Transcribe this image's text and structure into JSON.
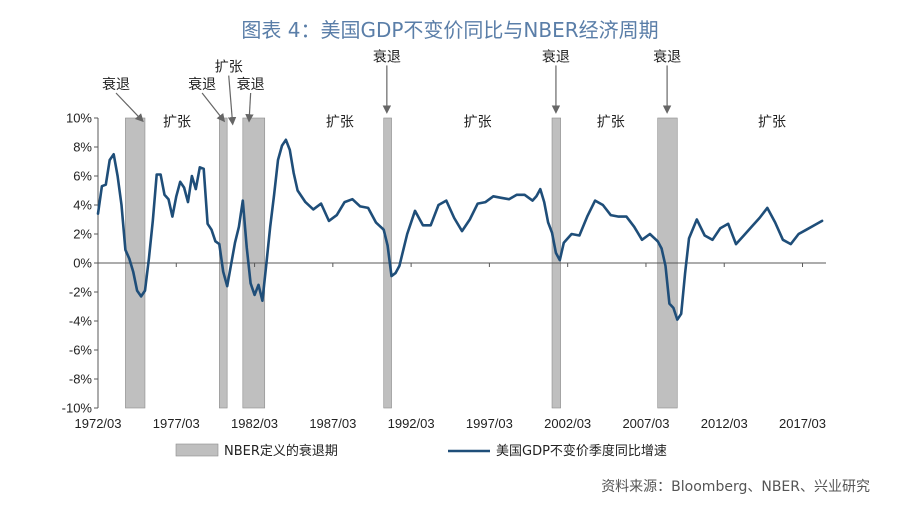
{
  "title": "图表 4：美国GDP不变价同比与NBER经济周期",
  "source": "资料来源：Bloomberg、NBER、兴业研究",
  "colors": {
    "line": "#1f4e79",
    "recession": "#bfbfbf",
    "recession_edge": "#8c8c8c",
    "title": "#5a7ea8"
  },
  "chart_data": {
    "type": "line",
    "x_start": 1972.25,
    "x_end": 2018.75,
    "ylim": [
      -10,
      10
    ],
    "y_ticks": [
      -10,
      -8,
      -6,
      -4,
      -2,
      0,
      2,
      4,
      6,
      8,
      10
    ],
    "y_tick_labels": [
      "-10%",
      "-8%",
      "-6%",
      "-4%",
      "-2%",
      "0%",
      "2%",
      "4%",
      "6%",
      "8%",
      "10%"
    ],
    "x_ticks": [
      1972.25,
      1977.25,
      1982.25,
      1987.25,
      1992.25,
      1997.25,
      2002.25,
      2007.25,
      2012.25,
      2017.25
    ],
    "x_tick_labels": [
      "1972/03",
      "1977/03",
      "1982/03",
      "1987/03",
      "1992/03",
      "1997/03",
      "2002/03",
      "2007/03",
      "2012/03",
      "2017/03"
    ],
    "recessions": [
      {
        "start": 1974.0,
        "end": 1975.25
      },
      {
        "start": 1980.0,
        "end": 1980.5
      },
      {
        "start": 1981.5,
        "end": 1982.9
      },
      {
        "start": 1990.5,
        "end": 1991.0
      },
      {
        "start": 2001.25,
        "end": 2001.8
      },
      {
        "start": 2008.0,
        "end": 2009.25
      }
    ],
    "annotations": {
      "recession_label": "衰退",
      "expansion_label": "扩张",
      "recession_callouts": [
        {
          "label_x": 1973.4,
          "label_y": 12.0,
          "arrow_x": 1975.1,
          "arrow_y": 9.8
        },
        {
          "label_x": 1978.9,
          "label_y": 12.0,
          "arrow_x": 1980.3,
          "arrow_y": 9.8
        },
        {
          "label_x": 1982.0,
          "label_y": 12.0,
          "arrow_x": 1981.9,
          "arrow_y": 9.8
        },
        {
          "label_x": 1990.7,
          "label_y": 13.9,
          "arrow_x": 1990.7,
          "arrow_y": 10.4
        },
        {
          "label_x": 2001.5,
          "label_y": 13.9,
          "arrow_x": 2001.5,
          "arrow_y": 10.4
        },
        {
          "label_x": 2008.6,
          "label_y": 13.9,
          "arrow_x": 2008.6,
          "arrow_y": 10.4
        }
      ],
      "expansion_callouts": [
        {
          "label_x": 1980.6,
          "label_y": 13.2,
          "arrow_x": 1980.85,
          "arrow_y": 9.6
        }
      ],
      "expansion_texts": [
        {
          "x": 1977.3,
          "y": 9.4
        },
        {
          "x": 1987.7,
          "y": 9.4
        },
        {
          "x": 1996.5,
          "y": 9.4
        },
        {
          "x": 2005.0,
          "y": 9.4
        },
        {
          "x": 2015.3,
          "y": 9.4
        }
      ]
    },
    "legend": [
      {
        "kind": "bar",
        "label": "NBER定义的衰退期"
      },
      {
        "kind": "line",
        "label": "美国GDP不变价季度同比增速"
      }
    ],
    "series": [
      {
        "name": "美国GDP不变价季度同比增速",
        "x": [
          1972.25,
          1972.5,
          1972.75,
          1973.0,
          1973.25,
          1973.5,
          1973.75,
          1974.0,
          1974.25,
          1974.5,
          1974.75,
          1975.0,
          1975.25,
          1975.5,
          1975.75,
          1976.0,
          1976.25,
          1976.5,
          1976.75,
          1977.0,
          1977.25,
          1977.5,
          1977.75,
          1978.0,
          1978.25,
          1978.5,
          1978.75,
          1979.0,
          1979.25,
          1979.5,
          1979.75,
          1980.0,
          1980.25,
          1980.5,
          1980.75,
          1981.0,
          1981.25,
          1981.5,
          1981.75,
          1982.0,
          1982.25,
          1982.5,
          1982.75,
          1983.0,
          1983.25,
          1983.5,
          1983.75,
          1984.0,
          1984.25,
          1984.5,
          1984.75,
          1985.0,
          1985.5,
          1986.0,
          1986.5,
          1987.0,
          1987.5,
          1988.0,
          1988.5,
          1989.0,
          1989.5,
          1990.0,
          1990.5,
          1990.75,
          1991.0,
          1991.25,
          1991.5,
          1991.75,
          1992.0,
          1992.5,
          1993.0,
          1993.5,
          1994.0,
          1994.5,
          1995.0,
          1995.5,
          1996.0,
          1996.5,
          1997.0,
          1997.5,
          1998.0,
          1998.5,
          1999.0,
          1999.5,
          2000.0,
          2000.25,
          2000.5,
          2000.75,
          2001.0,
          2001.25,
          2001.5,
          2001.75,
          2002.0,
          2002.5,
          2003.0,
          2003.5,
          2004.0,
          2004.5,
          2005.0,
          2005.5,
          2006.0,
          2006.5,
          2007.0,
          2007.5,
          2008.0,
          2008.25,
          2008.5,
          2008.75,
          2009.0,
          2009.25,
          2009.5,
          2009.75,
          2010.0,
          2010.5,
          2011.0,
          2011.5,
          2012.0,
          2012.5,
          2013.0,
          2013.5,
          2014.0,
          2014.5,
          2015.0,
          2015.5,
          2016.0,
          2016.5,
          2017.0,
          2017.5,
          2018.0,
          2018.5
        ],
        "y": [
          3.4,
          5.3,
          5.4,
          7.1,
          7.5,
          6.0,
          4.0,
          0.9,
          0.3,
          -0.6,
          -1.9,
          -2.3,
          -1.9,
          0.3,
          2.9,
          6.1,
          6.1,
          4.7,
          4.4,
          3.2,
          4.6,
          5.6,
          5.2,
          4.2,
          6.0,
          5.1,
          6.6,
          6.5,
          2.7,
          2.3,
          1.5,
          1.3,
          -0.6,
          -1.6,
          -0.1,
          1.4,
          2.5,
          4.3,
          1.1,
          -1.4,
          -2.2,
          -1.5,
          -2.6,
          -0.1,
          2.5,
          4.7,
          7.1,
          8.1,
          8.5,
          7.8,
          6.2,
          5.0,
          4.2,
          3.7,
          4.1,
          2.9,
          3.3,
          4.2,
          4.4,
          3.9,
          3.8,
          2.8,
          2.3,
          1.2,
          -0.9,
          -0.7,
          -0.2,
          0.9,
          2.0,
          3.6,
          2.6,
          2.6,
          4.0,
          4.3,
          3.1,
          2.2,
          3.0,
          4.1,
          4.2,
          4.6,
          4.5,
          4.4,
          4.7,
          4.7,
          4.3,
          4.6,
          5.1,
          4.2,
          2.8,
          2.1,
          0.7,
          0.2,
          1.4,
          2.0,
          1.9,
          3.2,
          4.3,
          4.0,
          3.3,
          3.2,
          3.2,
          2.5,
          1.6,
          2.0,
          1.5,
          1.0,
          -0.2,
          -2.8,
          -3.1,
          -3.9,
          -3.5,
          -0.7,
          1.7,
          3.0,
          1.9,
          1.6,
          2.4,
          2.7,
          1.3,
          1.9,
          2.5,
          3.1,
          3.8,
          2.8,
          1.6,
          1.3,
          2.0,
          2.3,
          2.6,
          2.9
        ]
      }
    ]
  }
}
